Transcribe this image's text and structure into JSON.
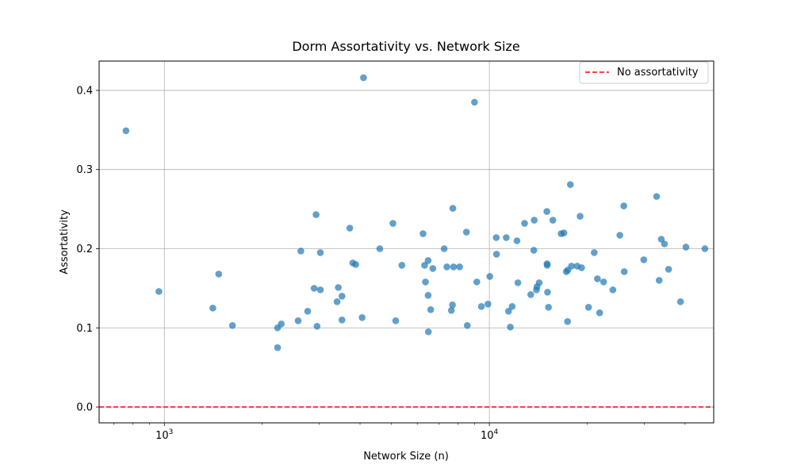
{
  "chart_data": {
    "type": "scatter",
    "title": "Dorm Assortativity vs. Network Size",
    "xlabel": "Network Size (n)",
    "ylabel": "Assortativity",
    "xscale": "log",
    "xlim": [
      630,
      49000
    ],
    "ylim": [
      -0.02,
      0.437
    ],
    "xticks": [
      1000,
      10000
    ],
    "xtick_labels": [
      {
        "base": "10",
        "exp": "3"
      },
      {
        "base": "10",
        "exp": "4"
      }
    ],
    "yticks": [
      0.0,
      0.1,
      0.2,
      0.3,
      0.4
    ],
    "ytick_labels": [
      "0.0",
      "0.1",
      "0.2",
      "0.3",
      "0.4"
    ],
    "grid": true,
    "point_color": "#1f77b4",
    "reference_line": {
      "y": 0.0,
      "color": "#ff0000",
      "style": "dashed",
      "label": "No assortativity"
    },
    "legend": {
      "position": "top-right",
      "entries": [
        "No assortativity"
      ]
    },
    "points": [
      {
        "x": 762,
        "y": 0.349
      },
      {
        "x": 962,
        "y": 0.146
      },
      {
        "x": 1410,
        "y": 0.125
      },
      {
        "x": 1470,
        "y": 0.168
      },
      {
        "x": 1620,
        "y": 0.103
      },
      {
        "x": 2230,
        "y": 0.1
      },
      {
        "x": 2230,
        "y": 0.075
      },
      {
        "x": 2290,
        "y": 0.105
      },
      {
        "x": 2580,
        "y": 0.109
      },
      {
        "x": 2630,
        "y": 0.197
      },
      {
        "x": 2760,
        "y": 0.121
      },
      {
        "x": 2890,
        "y": 0.15
      },
      {
        "x": 2930,
        "y": 0.243
      },
      {
        "x": 2950,
        "y": 0.102
      },
      {
        "x": 3020,
        "y": 0.195
      },
      {
        "x": 3020,
        "y": 0.148
      },
      {
        "x": 3400,
        "y": 0.133
      },
      {
        "x": 3430,
        "y": 0.151
      },
      {
        "x": 3520,
        "y": 0.14
      },
      {
        "x": 3520,
        "y": 0.11
      },
      {
        "x": 3720,
        "y": 0.226
      },
      {
        "x": 3800,
        "y": 0.182
      },
      {
        "x": 3880,
        "y": 0.18
      },
      {
        "x": 4060,
        "y": 0.113
      },
      {
        "x": 4100,
        "y": 0.416
      },
      {
        "x": 4600,
        "y": 0.2
      },
      {
        "x": 5050,
        "y": 0.232
      },
      {
        "x": 5150,
        "y": 0.109
      },
      {
        "x": 5380,
        "y": 0.179
      },
      {
        "x": 6250,
        "y": 0.219
      },
      {
        "x": 6320,
        "y": 0.179
      },
      {
        "x": 6360,
        "y": 0.158
      },
      {
        "x": 6480,
        "y": 0.185
      },
      {
        "x": 6480,
        "y": 0.141
      },
      {
        "x": 6490,
        "y": 0.095
      },
      {
        "x": 6600,
        "y": 0.123
      },
      {
        "x": 6700,
        "y": 0.175
      },
      {
        "x": 7260,
        "y": 0.2
      },
      {
        "x": 7400,
        "y": 0.177
      },
      {
        "x": 7640,
        "y": 0.122
      },
      {
        "x": 7700,
        "y": 0.129
      },
      {
        "x": 7720,
        "y": 0.251
      },
      {
        "x": 7760,
        "y": 0.177
      },
      {
        "x": 8100,
        "y": 0.177
      },
      {
        "x": 8500,
        "y": 0.221
      },
      {
        "x": 8550,
        "y": 0.103
      },
      {
        "x": 9000,
        "y": 0.385
      },
      {
        "x": 9150,
        "y": 0.158
      },
      {
        "x": 9450,
        "y": 0.127
      },
      {
        "x": 9900,
        "y": 0.13
      },
      {
        "x": 10030,
        "y": 0.165
      },
      {
        "x": 10500,
        "y": 0.214
      },
      {
        "x": 10520,
        "y": 0.193
      },
      {
        "x": 11270,
        "y": 0.214
      },
      {
        "x": 11450,
        "y": 0.121
      },
      {
        "x": 11600,
        "y": 0.101
      },
      {
        "x": 11750,
        "y": 0.127
      },
      {
        "x": 12160,
        "y": 0.21
      },
      {
        "x": 12240,
        "y": 0.157
      },
      {
        "x": 12830,
        "y": 0.232
      },
      {
        "x": 13410,
        "y": 0.142
      },
      {
        "x": 13700,
        "y": 0.198
      },
      {
        "x": 13740,
        "y": 0.236
      },
      {
        "x": 13960,
        "y": 0.148
      },
      {
        "x": 14010,
        "y": 0.152
      },
      {
        "x": 14230,
        "y": 0.157
      },
      {
        "x": 15030,
        "y": 0.247
      },
      {
        "x": 15050,
        "y": 0.181
      },
      {
        "x": 15060,
        "y": 0.179
      },
      {
        "x": 15100,
        "y": 0.145
      },
      {
        "x": 15200,
        "y": 0.126
      },
      {
        "x": 15680,
        "y": 0.236
      },
      {
        "x": 16630,
        "y": 0.219
      },
      {
        "x": 16960,
        "y": 0.22
      },
      {
        "x": 17250,
        "y": 0.171
      },
      {
        "x": 17400,
        "y": 0.108
      },
      {
        "x": 17430,
        "y": 0.173
      },
      {
        "x": 17750,
        "y": 0.281
      },
      {
        "x": 17890,
        "y": 0.178
      },
      {
        "x": 18630,
        "y": 0.178
      },
      {
        "x": 19020,
        "y": 0.241
      },
      {
        "x": 19220,
        "y": 0.176
      },
      {
        "x": 20190,
        "y": 0.126
      },
      {
        "x": 21020,
        "y": 0.195
      },
      {
        "x": 21500,
        "y": 0.162
      },
      {
        "x": 21840,
        "y": 0.119
      },
      {
        "x": 22460,
        "y": 0.158
      },
      {
        "x": 23990,
        "y": 0.148
      },
      {
        "x": 25200,
        "y": 0.217
      },
      {
        "x": 25920,
        "y": 0.254
      },
      {
        "x": 26000,
        "y": 0.171
      },
      {
        "x": 29860,
        "y": 0.186
      },
      {
        "x": 32700,
        "y": 0.266
      },
      {
        "x": 33300,
        "y": 0.16
      },
      {
        "x": 33800,
        "y": 0.212
      },
      {
        "x": 34580,
        "y": 0.206
      },
      {
        "x": 35600,
        "y": 0.174
      },
      {
        "x": 38740,
        "y": 0.133
      },
      {
        "x": 40260,
        "y": 0.202
      },
      {
        "x": 46040,
        "y": 0.2
      }
    ]
  }
}
